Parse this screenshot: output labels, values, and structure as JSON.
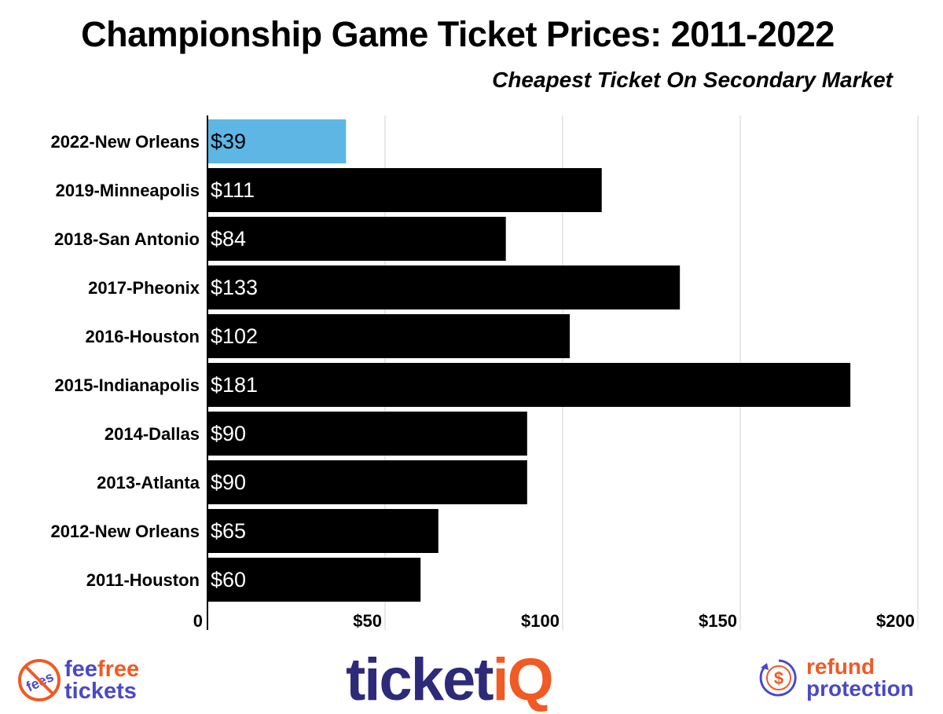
{
  "chart_data": {
    "type": "bar",
    "orientation": "horizontal",
    "title": "Championship Game Ticket Prices: 2011-2022",
    "subtitle": "Cheapest Ticket On Secondary Market",
    "categories": [
      "2022-New Orleans",
      "2019-Minneapolis",
      "2018-San Antonio",
      "2017-Pheonix",
      "2016-Houston",
      "2015-Indianapolis",
      "2014-Dallas",
      "2013-Atlanta",
      "2012-New Orleans",
      "2011-Houston"
    ],
    "values": [
      39,
      111,
      84,
      133,
      102,
      181,
      90,
      90,
      65,
      60
    ],
    "data_labels": [
      "$39",
      "$111",
      "$84",
      "$133",
      "$102",
      "$181",
      "$90",
      "$90",
      "$65",
      "$60"
    ],
    "xlim": [
      0,
      200
    ],
    "xticks": [
      0,
      50,
      100,
      150,
      200
    ],
    "xtick_labels": [
      "0",
      "$50",
      "$100",
      "$150",
      "$200"
    ],
    "grid": true,
    "colors": {
      "highlight": "#5db6e4",
      "default": "#000000"
    }
  },
  "footer": {
    "feefree": {
      "fee": "fee",
      "free": "free",
      "tickets": "tickets",
      "badge": "fees"
    },
    "ticketiq": {
      "ticket": "ticket",
      "iq": "iQ"
    },
    "refund": {
      "line1": "refund",
      "line2": "protection",
      "symbol": "$"
    },
    "colors": {
      "purple": "#4b48c8",
      "orange": "#f05a24",
      "navy": "#2d2a7a"
    }
  }
}
